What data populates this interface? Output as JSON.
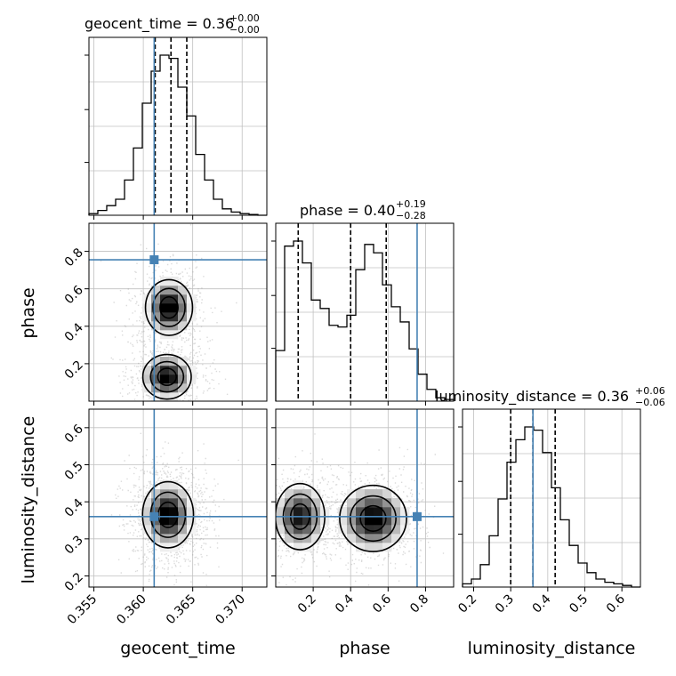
{
  "chart_data": {
    "type": "corner",
    "parameters": [
      "geocent_time",
      "phase",
      "luminosity_distance"
    ],
    "truths": {
      "geocent_time": 0.3611,
      "phase": 0.755,
      "luminosity_distance": 0.36
    },
    "colors": {
      "truth": "#4682b4",
      "hist": "#000000",
      "grid": "#c0c0c0",
      "points": "#999999"
    },
    "grid": true,
    "axes": {
      "geocent_time": {
        "range": [
          0.3545,
          0.3725
        ],
        "ticks": [
          0.355,
          0.36,
          0.365,
          0.37
        ],
        "tick_labels": [
          "0.355",
          "0.360",
          "0.365",
          "0.370"
        ]
      },
      "phase": {
        "range": [
          0.0,
          0.95
        ],
        "ticks": [
          0.2,
          0.4,
          0.6,
          0.8
        ],
        "tick_labels": [
          "0.2",
          "0.4",
          "0.6",
          "0.8"
        ]
      },
      "luminosity_distance": {
        "range": [
          0.17,
          0.65
        ],
        "ticks": [
          0.2,
          0.3,
          0.4,
          0.5,
          0.6
        ],
        "tick_labels": [
          "0.2",
          "0.3",
          "0.4",
          "0.5",
          "0.6"
        ]
      }
    },
    "titles": [
      {
        "param": "geocent_time",
        "text": "geocent_time = 0.36",
        "upper": "+0.00",
        "lower": "−0.00"
      },
      {
        "param": "phase",
        "text": "phase = 0.40",
        "upper": "+0.19",
        "lower": "−0.28"
      },
      {
        "param": "luminosity_distance",
        "text": "luminosity_distance = 0.36",
        "upper": "+0.06",
        "lower": "−0.06"
      }
    ],
    "quantiles": {
      "geocent_time": [
        0.3612,
        0.3628,
        0.3644
      ],
      "phase": [
        0.12,
        0.4,
        0.59
      ],
      "luminosity_distance": [
        0.3,
        0.36,
        0.42
      ]
    },
    "histograms": {
      "geocent_time": {
        "edges": [
          0.3545,
          0.3554,
          0.3563,
          0.3572,
          0.3581,
          0.359,
          0.3599,
          0.3608,
          0.3617,
          0.3626,
          0.3635,
          0.3644,
          0.3653,
          0.3662,
          0.3671,
          0.368,
          0.3689,
          0.3698,
          0.3707,
          0.3716,
          0.3725
        ],
        "counts": [
          0.01,
          0.03,
          0.06,
          0.1,
          0.22,
          0.42,
          0.7,
          0.9,
          1.0,
          0.98,
          0.8,
          0.62,
          0.38,
          0.22,
          0.1,
          0.04,
          0.02,
          0.01,
          0.005,
          0.0
        ]
      },
      "phase": {
        "edges": [
          0.0,
          0.0475,
          0.095,
          0.1425,
          0.19,
          0.2375,
          0.285,
          0.3325,
          0.38,
          0.4275,
          0.475,
          0.5225,
          0.57,
          0.6175,
          0.665,
          0.7125,
          0.76,
          0.8075,
          0.855,
          0.9025,
          0.95
        ],
        "counts": [
          0.3,
          0.92,
          0.95,
          0.82,
          0.6,
          0.55,
          0.45,
          0.44,
          0.51,
          0.78,
          0.93,
          0.88,
          0.69,
          0.56,
          0.47,
          0.31,
          0.16,
          0.07,
          0.02,
          0.01
        ]
      },
      "luminosity_distance": {
        "edges": [
          0.17,
          0.194,
          0.218,
          0.242,
          0.266,
          0.29,
          0.314,
          0.338,
          0.362,
          0.386,
          0.41,
          0.434,
          0.458,
          0.482,
          0.506,
          0.53,
          0.554,
          0.578,
          0.602,
          0.626,
          0.65
        ],
        "counts": [
          0.02,
          0.05,
          0.14,
          0.32,
          0.55,
          0.78,
          0.92,
          1.0,
          0.98,
          0.84,
          0.62,
          0.42,
          0.26,
          0.15,
          0.09,
          0.05,
          0.03,
          0.02,
          0.01,
          0.0
        ]
      }
    },
    "panels_2d": [
      {
        "x": "geocent_time",
        "y": "phase",
        "modes": [
          {
            "x": 0.3626,
            "y": 0.5,
            "sx": 0.0012,
            "sy": 0.075,
            "w": 1.0
          },
          {
            "x": 0.3624,
            "y": 0.13,
            "sx": 0.0013,
            "sy": 0.06,
            "w": 0.95
          }
        ]
      },
      {
        "x": "geocent_time",
        "y": "luminosity_distance",
        "modes": [
          {
            "x": 0.3625,
            "y": 0.365,
            "sx": 0.0013,
            "sy": 0.045,
            "w": 1.0
          }
        ]
      },
      {
        "x": "phase",
        "y": "luminosity_distance",
        "modes": [
          {
            "x": 0.13,
            "y": 0.36,
            "sx": 0.07,
            "sy": 0.045,
            "w": 0.9
          },
          {
            "x": 0.52,
            "y": 0.355,
            "sx": 0.09,
            "sy": 0.045,
            "w": 1.0
          }
        ]
      }
    ]
  }
}
